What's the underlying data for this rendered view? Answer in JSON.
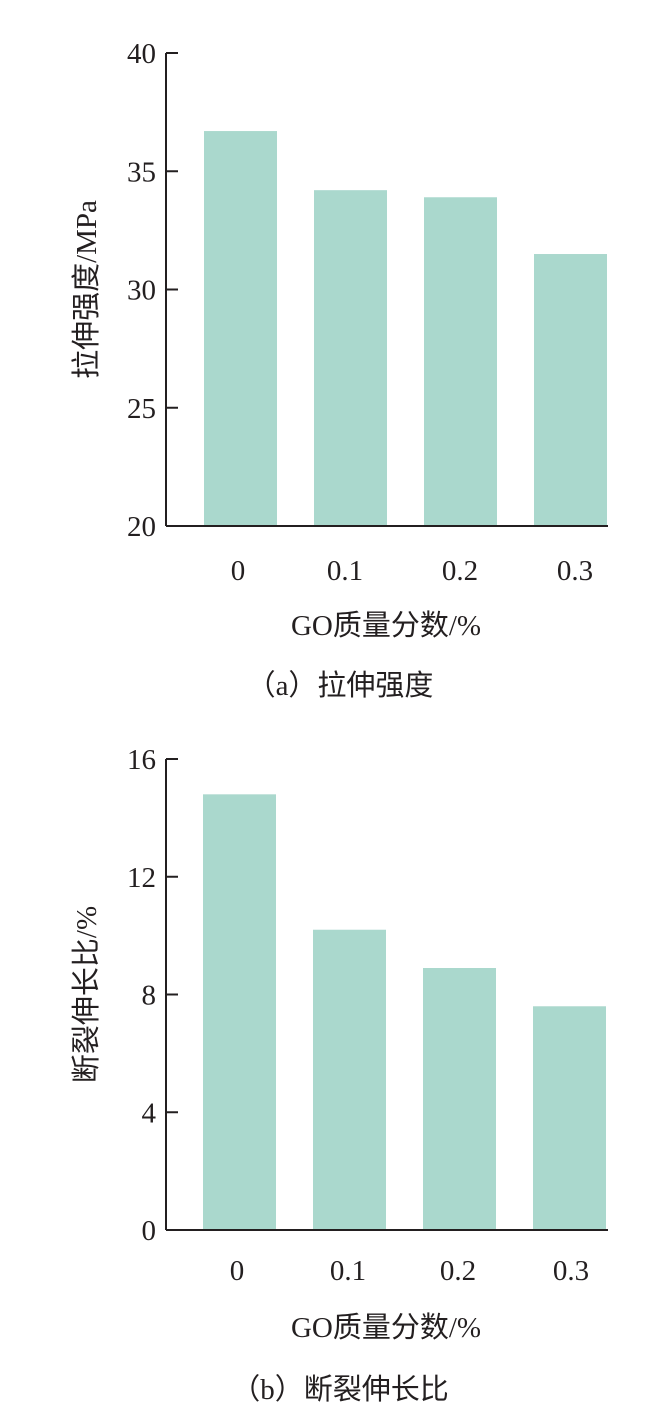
{
  "colors": {
    "bar": "#aad8cd",
    "axis": "#231f20",
    "text": "#231f20"
  },
  "chart_data": [
    {
      "type": "bar",
      "categories": [
        "0",
        "0.1",
        "0.2",
        "0.3"
      ],
      "values": [
        36.7,
        34.2,
        33.9,
        31.5
      ],
      "xlabel": "GO质量分数/%",
      "ylabel": "拉伸强度/MPa",
      "ylim": [
        20,
        40
      ],
      "yticks": [
        "20",
        "25",
        "30",
        "35",
        "40"
      ],
      "caption": "（a）拉伸强度",
      "grid": false
    },
    {
      "type": "bar",
      "categories": [
        "0",
        "0.1",
        "0.2",
        "0.3"
      ],
      "values": [
        14.8,
        10.2,
        8.9,
        7.6
      ],
      "xlabel": "GO质量分数/%",
      "ylabel": "断裂伸长比/%",
      "ylim": [
        0,
        16
      ],
      "yticks": [
        "0",
        "4",
        "8",
        "12",
        "16"
      ],
      "caption": "（b）断裂伸长比",
      "grid": false
    }
  ]
}
